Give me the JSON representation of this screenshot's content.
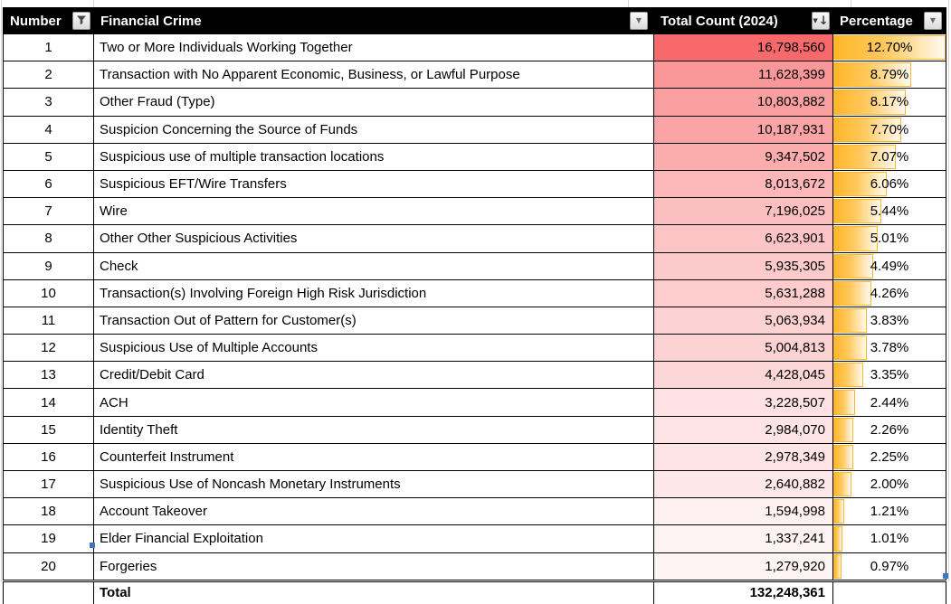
{
  "app": {
    "kind": "spreadsheet-table"
  },
  "table": {
    "columns": [
      {
        "label": "Number",
        "filter_state": "filtered",
        "icon": "funnel-filter-applied-icon"
      },
      {
        "label": "Financial Crime",
        "filter_state": "none",
        "icon": "chevron-down-icon"
      },
      {
        "label": "Total Count (2024)",
        "filter_state": "sorted-descending",
        "icon": "sort-descending-icon"
      },
      {
        "label": "Percentage",
        "filter_state": "none",
        "icon": "chevron-down-icon"
      }
    ],
    "rows": [
      {
        "number": "1",
        "crime": "Two or More Individuals Working Together",
        "count": "16,798,560",
        "percentage": "12.70%"
      },
      {
        "number": "2",
        "crime": "Transaction with No Apparent Economic, Business, or Lawful Purpose",
        "count": "11,628,399",
        "percentage": "8.79%"
      },
      {
        "number": "3",
        "crime": "Other Fraud (Type)",
        "count": "10,803,882",
        "percentage": "8.17%"
      },
      {
        "number": "4",
        "crime": "Suspicion Concerning the Source of Funds",
        "count": "10,187,931",
        "percentage": "7.70%"
      },
      {
        "number": "5",
        "crime": "Suspicious use of multiple transaction locations",
        "count": "9,347,502",
        "percentage": "7.07%"
      },
      {
        "number": "6",
        "crime": "Suspicious EFT/Wire Transfers",
        "count": "8,013,672",
        "percentage": "6.06%"
      },
      {
        "number": "7",
        "crime": "Wire",
        "count": "7,196,025",
        "percentage": "5.44%"
      },
      {
        "number": "8",
        "crime": "Other Other Suspicious Activities",
        "count": "6,623,901",
        "percentage": "5.01%"
      },
      {
        "number": "9",
        "crime": "Check",
        "count": "5,935,305",
        "percentage": "4.49%"
      },
      {
        "number": "10",
        "crime": "Transaction(s) Involving Foreign High Risk Jurisdiction",
        "count": "5,631,288",
        "percentage": "4.26%"
      },
      {
        "number": "11",
        "crime": "Transaction Out of Pattern for Customer(s)",
        "count": "5,063,934",
        "percentage": "3.83%"
      },
      {
        "number": "12",
        "crime": "Suspicious Use of Multiple Accounts",
        "count": "5,004,813",
        "percentage": "3.78%"
      },
      {
        "number": "13",
        "crime": "Credit/Debit Card",
        "count": "4,428,045",
        "percentage": "3.35%"
      },
      {
        "number": "14",
        "crime": "ACH",
        "count": "3,228,507",
        "percentage": "2.44%"
      },
      {
        "number": "15",
        "crime": "Identity Theft",
        "count": "2,984,070",
        "percentage": "2.26%"
      },
      {
        "number": "16",
        "crime": "Counterfeit Instrument",
        "count": "2,978,349",
        "percentage": "2.25%"
      },
      {
        "number": "17",
        "crime": "Suspicious Use of Noncash Monetary Instruments",
        "count": "2,640,882",
        "percentage": "2.00%"
      },
      {
        "number": "18",
        "crime": "Account Takeover",
        "count": "1,594,998",
        "percentage": "1.21%"
      },
      {
        "number": "19",
        "crime": "Elder Financial Exploitation",
        "count": "1,337,241",
        "percentage": "1.01%"
      },
      {
        "number": "20",
        "crime": "Forgeries",
        "count": "1,279,920",
        "percentage": "0.97%"
      }
    ],
    "total": {
      "label": "Total",
      "count": "132,248,361"
    },
    "conditional_formatting": {
      "count_color_scale": {
        "min_value": 0,
        "max_value": 16798560,
        "min_color": "#FFFFFF",
        "max_color": "#F8696B"
      },
      "percentage_data_bar": {
        "max_percent": 12.7,
        "bar_color": "#FFB628"
      }
    },
    "colors": {
      "header_bg": "#000000",
      "header_text": "#FFFFFF",
      "grid_border": "#000000",
      "table_handle_blue": "#4472C4"
    }
  }
}
